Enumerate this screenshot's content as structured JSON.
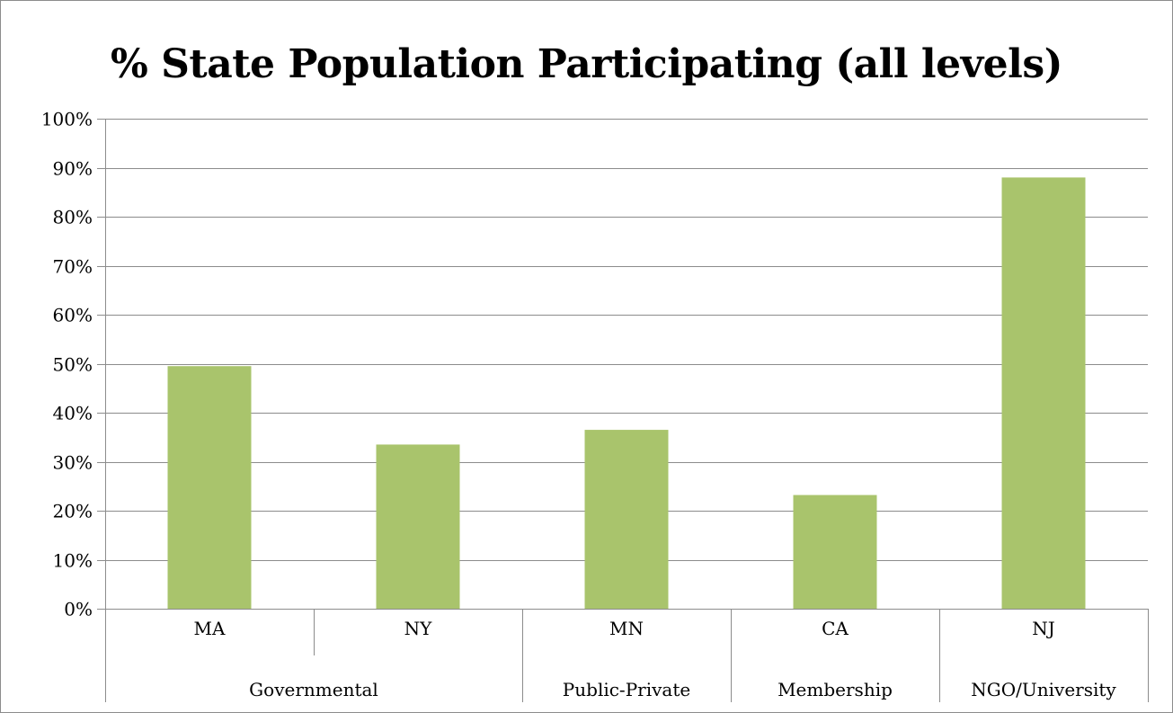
{
  "chart_data": {
    "type": "bar",
    "title": "% State Population Participating (all levels)",
    "xlabel": "",
    "ylabel": "",
    "ylim": [
      0,
      100
    ],
    "y_ticks": [
      "0%",
      "10%",
      "20%",
      "30%",
      "40%",
      "50%",
      "60%",
      "70%",
      "80%",
      "90%",
      "100%"
    ],
    "grid": true,
    "legend": "none",
    "bar_color": "#a9c46c",
    "categories": [
      "MA",
      "NY",
      "MN",
      "CA",
      "NJ"
    ],
    "groups": [
      {
        "name": "Governmental",
        "categories": [
          "MA",
          "NY"
        ]
      },
      {
        "name": "Public-Private",
        "categories": [
          "MN"
        ]
      },
      {
        "name": "Membership",
        "categories": [
          "CA"
        ]
      },
      {
        "name": "NGO/University",
        "categories": [
          "NJ"
        ]
      }
    ],
    "values": [
      49.5,
      33.5,
      36.5,
      23.2,
      88.0
    ]
  }
}
